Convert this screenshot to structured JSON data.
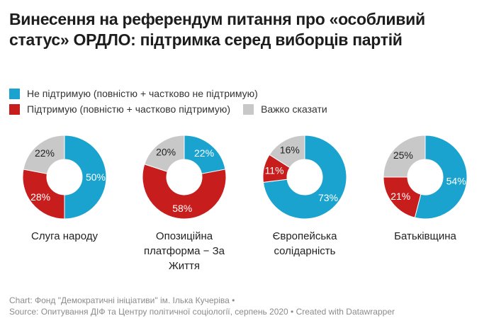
{
  "title": "Винесення на референдум питання про «особливий статус» ОРДЛО: підтримка серед виборців партій",
  "legend": [
    {
      "label": "Не підтримую (повністю + частково не підтримую)",
      "color": "#1ba3d0"
    },
    {
      "label": "Підтримую (повністю + частково підтримую)",
      "color": "#c71e1d"
    },
    {
      "label": "Важко сказати",
      "color": "#c8c8c8"
    }
  ],
  "chart_data": {
    "type": "pie",
    "variant": "donut",
    "title": "Винесення на референдум питання про «особливий статус» ОРДЛО: підтримка серед виборців партій",
    "series_names": [
      "Не підтримую (повністю + частково не підтримую)",
      "Підтримую (повністю + частково підтримую)",
      "Важко сказати"
    ],
    "colors": [
      "#1ba3d0",
      "#c71e1d",
      "#c8c8c8"
    ],
    "label_colors": [
      "#ffffff",
      "#ffffff",
      "#222222"
    ],
    "charts": [
      {
        "name": "Слуга народу",
        "values": [
          50,
          28,
          22
        ],
        "labels": [
          "50%",
          "28%",
          "22%"
        ]
      },
      {
        "name": "Опозиційна платформа − За Життя",
        "values": [
          22,
          58,
          20
        ],
        "labels": [
          "22%",
          "58%",
          "20%"
        ]
      },
      {
        "name": "Європейська солідарність",
        "values": [
          73,
          11,
          16
        ],
        "labels": [
          "73%",
          "11%",
          "16%"
        ]
      },
      {
        "name": "Батьківщина",
        "values": [
          54,
          21,
          25
        ],
        "labels": [
          "54%",
          "21%",
          "25%"
        ]
      }
    ]
  },
  "footer": {
    "line1": "Chart: Фонд \"Демократичні ініціативи\" ім. Ілька Кучеріва •",
    "line2": "Source: Опитування ДІФ та Центру політичної соціології, серпень 2020 • Created with Datawrapper"
  }
}
